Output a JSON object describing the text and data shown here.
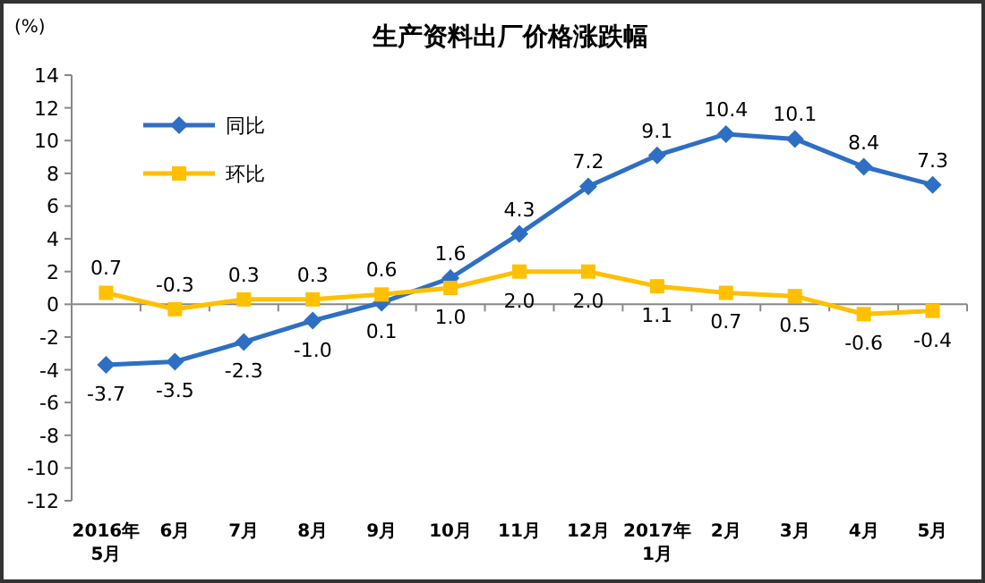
{
  "chart_data": {
    "type": "line",
    "title": "生产资料出厂价格涨跌幅",
    "ylabel": "(%)",
    "categories": [
      "2016年\n5月",
      "6月",
      "7月",
      "8月",
      "9月",
      "10月",
      "11月",
      "12月",
      "2017年\n1月",
      "2月",
      "3月",
      "4月",
      "5月"
    ],
    "series": [
      {
        "name": "同比",
        "color": "#2e6fc4",
        "marker": "diamond",
        "values": [
          -3.7,
          -3.5,
          -2.3,
          -1.0,
          0.1,
          1.6,
          4.3,
          7.2,
          9.1,
          10.4,
          10.1,
          8.4,
          7.3
        ],
        "value_labels": [
          "-3.7",
          "-3.5",
          "-2.3",
          "-1.0",
          "0.1",
          "1.6",
          "4.3",
          "7.2",
          "9.1",
          "10.4",
          "10.1",
          "8.4",
          "7.3"
        ]
      },
      {
        "name": "环比",
        "color": "#ffc000",
        "marker": "square",
        "values": [
          0.7,
          -0.3,
          0.3,
          0.3,
          0.6,
          1.0,
          2.0,
          2.0,
          1.1,
          0.7,
          0.5,
          -0.6,
          -0.4
        ],
        "value_labels": [
          "0.7",
          "-0.3",
          "0.3",
          "0.3",
          "0.6",
          "1.0",
          "2.0",
          "2.0",
          "1.1",
          "0.7",
          "0.5",
          "-0.6",
          "-0.4"
        ]
      }
    ],
    "ylim": [
      -12,
      14
    ],
    "yticks": [
      -12,
      -10,
      -8,
      -6,
      -4,
      -2,
      0,
      2,
      4,
      6,
      8,
      10,
      12,
      14
    ],
    "legend": "top left"
  }
}
